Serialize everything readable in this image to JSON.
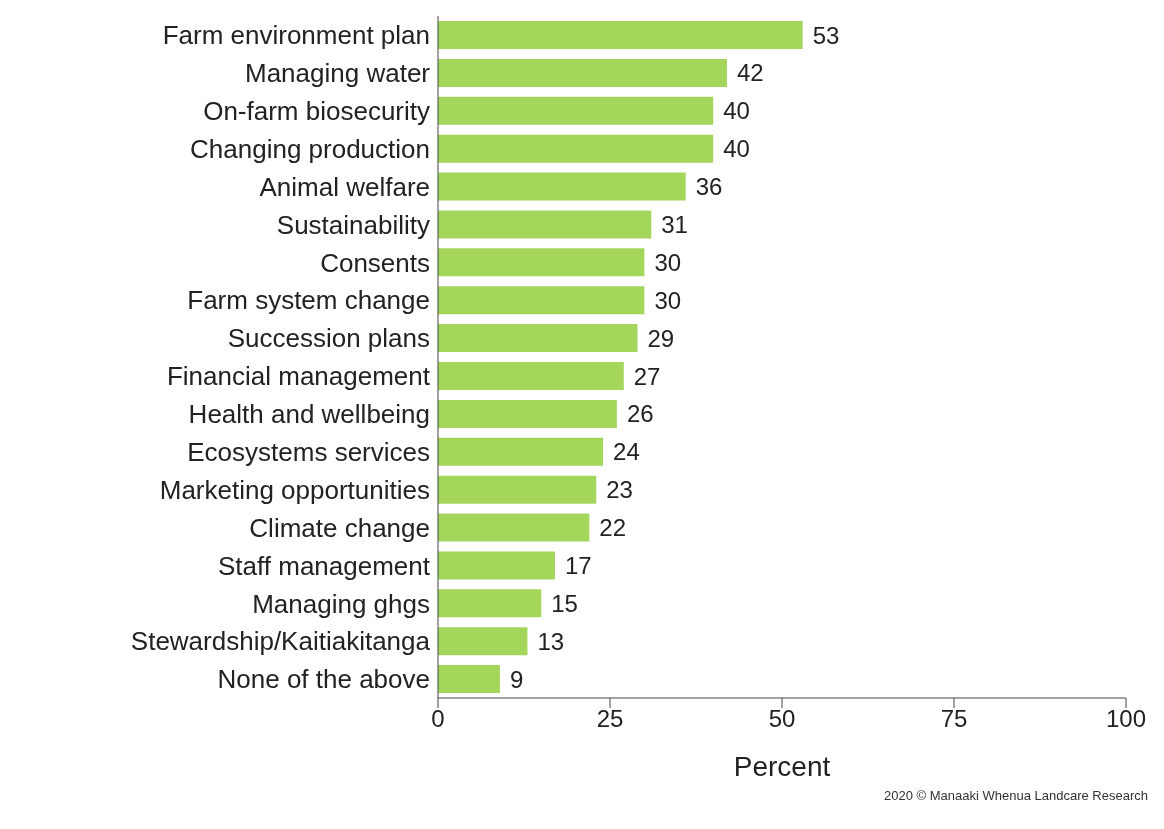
{
  "chart_data": {
    "type": "bar",
    "orientation": "horizontal",
    "xlabel": "Percent",
    "categories": [
      "Farm environment plan",
      "Managing water",
      "On-farm biosecurity",
      "Changing production",
      "Animal welfare",
      "Sustainability",
      "Consents",
      "Farm system change",
      "Succession plans",
      "Financial management",
      "Health and wellbeing",
      "Ecosystems services",
      "Marketing opportunities",
      "Climate change",
      "Staff management",
      "Managing ghgs",
      "Stewardship/Kaitiakitanga",
      "None of the above"
    ],
    "values": [
      53,
      42,
      40,
      40,
      36,
      31,
      30,
      30,
      29,
      27,
      26,
      24,
      23,
      22,
      17,
      15,
      13,
      9
    ],
    "color": "#a5d65c",
    "xlim": [
      0,
      100
    ],
    "xticks": [
      0,
      25,
      50,
      75,
      100
    ],
    "data_labels": true,
    "grid": false,
    "legend": false,
    "annotations": [
      "2020 © Manaaki Whenua Landcare Research"
    ]
  }
}
